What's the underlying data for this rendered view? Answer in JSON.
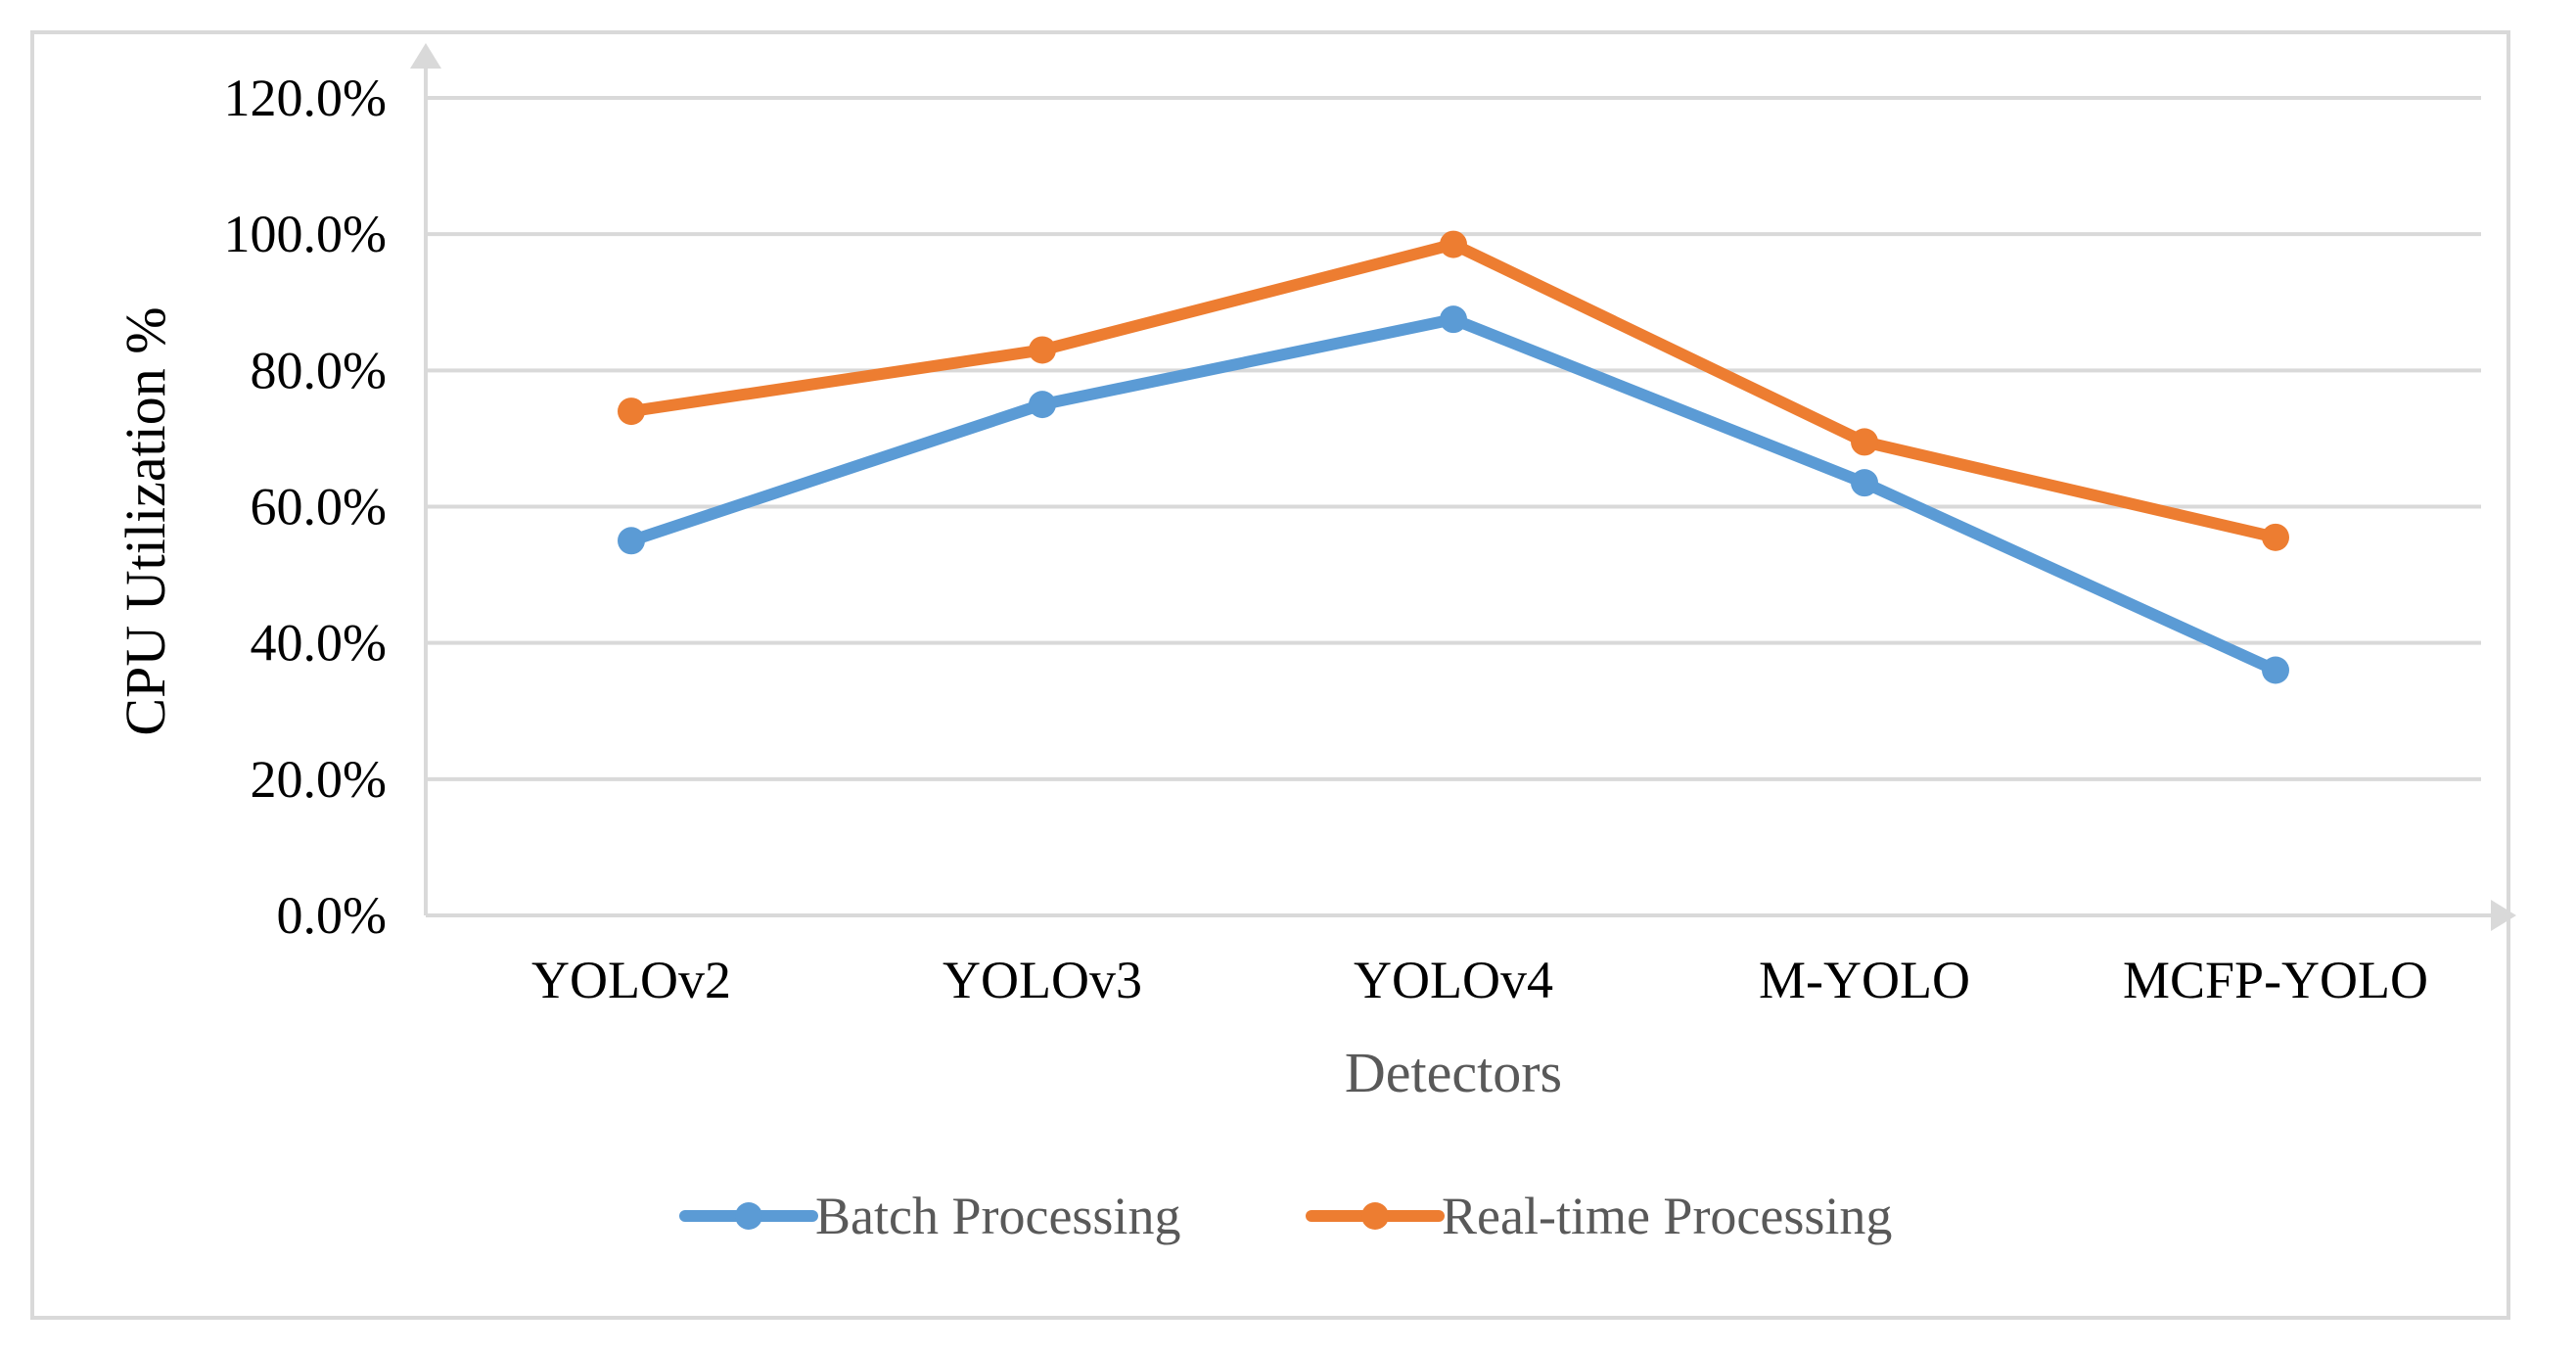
{
  "chart_data": {
    "type": "line",
    "title": "",
    "xlabel": "Detectors",
    "ylabel": "CPU Utilization %",
    "categories": [
      "YOLOv2",
      "YOLOv3",
      "YOLOv4",
      "M-YOLO",
      "MCFP-YOLO"
    ],
    "y_tick_labels": [
      "0.0%",
      "20.0%",
      "40.0%",
      "60.0%",
      "80.0%",
      "100.0%",
      "120.0%"
    ],
    "y_ticks": [
      0,
      20,
      40,
      60,
      80,
      100,
      120
    ],
    "ylim": [
      0,
      120
    ],
    "grid": true,
    "legend_position": "bottom",
    "series": [
      {
        "name": "Batch Processing",
        "color": "#5B9BD5",
        "values": [
          55.0,
          75.0,
          87.5,
          63.5,
          36.0
        ]
      },
      {
        "name": "Real-time Processing",
        "color": "#ED7D31",
        "values": [
          74.0,
          83.0,
          98.5,
          69.5,
          55.5
        ]
      }
    ]
  }
}
